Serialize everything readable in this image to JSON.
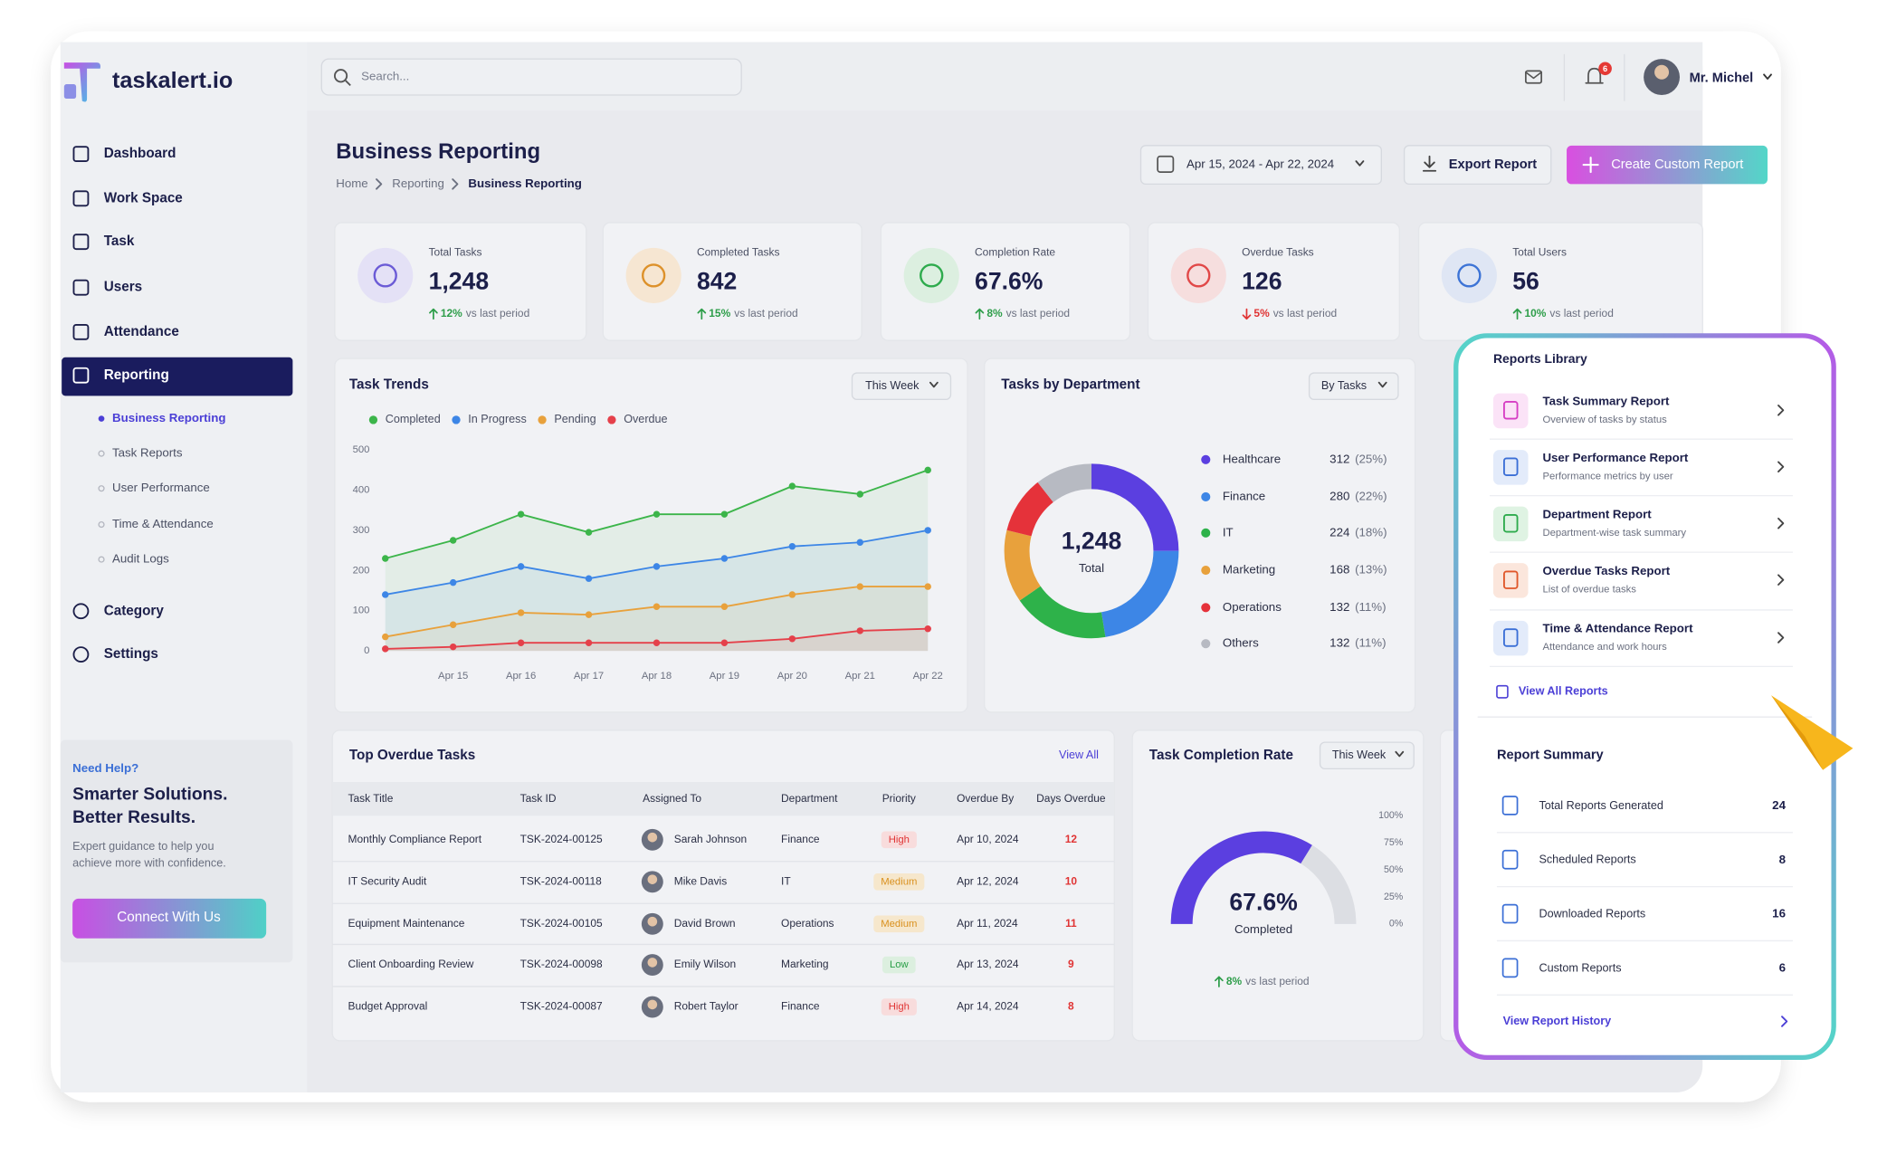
{
  "brand": "taskalert.io",
  "search_placeholder": "Search...",
  "notifications": 6,
  "user": "Mr. Michel",
  "nav": [
    "Dashboard",
    "Work Space",
    "Task",
    "Users",
    "Attendance",
    "Reporting"
  ],
  "subnav": [
    "Business Reporting",
    "Task Reports",
    "User Performance",
    "Time & Attendance",
    "Audit Logs"
  ],
  "nav_bottom": [
    "Category",
    "Settings"
  ],
  "help": {
    "kicker": "Need Help?",
    "title_lines": [
      "Smarter Solutions.",
      "Better Results."
    ],
    "text_lines": [
      "Expert guidance to help you",
      "achieve more with confidence."
    ],
    "button": "Connect With Us"
  },
  "header": {
    "title": "Business Reporting",
    "breadcrumb": [
      "Home",
      "Reporting",
      "Business Reporting"
    ],
    "date_range": "Apr 15, 2024 - Apr 22, 2024",
    "export": "Export Report",
    "create": "Create Custom Report"
  },
  "kpis": [
    {
      "label": "Total Tasks",
      "value": "1,248",
      "delta": "12%",
      "note": "vs last period",
      "trend_color": "#2e9e4a",
      "icon_bg": "#e4e1f6",
      "icon_color": "#6b5bd6"
    },
    {
      "label": "Completed Tasks",
      "value": "842",
      "delta": "15%",
      "note": "vs last period",
      "trend_color": "#2e9e4a",
      "icon_bg": "#f6e6d2",
      "icon_color": "#dd912a"
    },
    {
      "label": "Completion Rate",
      "value": "67.6%",
      "delta": "8%",
      "note": "vs last period",
      "trend_color": "#2e9e4a",
      "icon_bg": "#dcefe0",
      "icon_color": "#2eab4d"
    },
    {
      "label": "Overdue Tasks",
      "value": "126",
      "delta": "5%",
      "note": "vs last period",
      "trend_color": "#e03434",
      "icon_bg": "#f6dede",
      "icon_color": "#e14848"
    },
    {
      "label": "Total Users",
      "value": "56",
      "delta": "10%",
      "note": "vs last period",
      "trend_color": "#2e9e4a",
      "icon_bg": "#dfe6f4",
      "icon_color": "#3d74d6"
    }
  ],
  "task_trends": {
    "type": "line",
    "title": "Task Trends",
    "filter": "This Week",
    "categories": [
      null,
      "Apr 15",
      "Apr 16",
      "Apr 17",
      "Apr 18",
      "Apr 19",
      "Apr 20",
      "Apr 21",
      "Apr 22"
    ],
    "series": [
      {
        "name": "Completed",
        "color": "#3cb54a",
        "values": [
          230,
          275,
          340,
          295,
          340,
          340,
          410,
          390,
          450
        ]
      },
      {
        "name": "In Progress",
        "color": "#3d86e6",
        "values": [
          140,
          170,
          210,
          180,
          210,
          230,
          260,
          270,
          300
        ]
      },
      {
        "name": "Pending",
        "color": "#e8a13c",
        "values": [
          35,
          65,
          95,
          90,
          110,
          110,
          140,
          160,
          160
        ]
      },
      {
        "name": "Overdue",
        "color": "#e5404a",
        "values": [
          5,
          10,
          20,
          20,
          20,
          20,
          30,
          50,
          55
        ]
      }
    ],
    "ylim": [
      0,
      500
    ],
    "yticks": [
      0,
      100,
      200,
      300,
      400,
      500
    ],
    "grid": false
  },
  "departments": {
    "type": "pie",
    "title": "Tasks by Department",
    "filter": "By Tasks",
    "total_label": "1,248",
    "total_caption": "Total",
    "categories": [
      "Healthcare",
      "Finance",
      "IT",
      "Marketing",
      "Operations",
      "Others"
    ],
    "values": [
      312,
      280,
      224,
      168,
      132,
      132
    ],
    "pct_labels": [
      "(25%)",
      "(22%)",
      "(18%)",
      "(13%)",
      "(11%)",
      "(11%)"
    ],
    "colors": [
      "#5b3fe0",
      "#3d86e6",
      "#2eb24a",
      "#e8a13c",
      "#e5323a",
      "#b7bac2"
    ]
  },
  "overdue": {
    "title": "Top Overdue Tasks",
    "view_all": "View All",
    "columns": [
      "Task Title",
      "Task ID",
      "Assigned To",
      "Department",
      "Priority",
      "Overdue By",
      "Days Overdue"
    ],
    "rows": [
      {
        "cells": [
          "Monthly Compliance Report",
          "TSK-2024-00125",
          "Sarah Johnson",
          "Finance",
          "High",
          "Apr 10, 2024",
          12
        ],
        "priority_color": "#e03434",
        "priority_bg": "#f8dcdc"
      },
      {
        "cells": [
          "IT Security Audit",
          "TSK-2024-00118",
          "Mike Davis",
          "IT",
          "Medium",
          "Apr 12, 2024",
          10
        ],
        "priority_color": "#d9901d",
        "priority_bg": "#f6e7cc"
      },
      {
        "cells": [
          "Equipment Maintenance",
          "TSK-2024-00105",
          "David Brown",
          "Operations",
          "Medium",
          "Apr 11, 2024",
          11
        ],
        "priority_color": "#d9901d",
        "priority_bg": "#f6e7cc"
      },
      {
        "cells": [
          "Client Onboarding Review",
          "TSK-2024-00098",
          "Emily Wilson",
          "Marketing",
          "Low",
          "Apr 13, 2024",
          9
        ],
        "priority_color": "#2a9f48",
        "priority_bg": "#dcefdf"
      },
      {
        "cells": [
          "Budget Approval",
          "TSK-2024-00087",
          "Robert Taylor",
          "Finance",
          "High",
          "Apr 14, 2024",
          8
        ],
        "priority_color": "#e03434",
        "priority_bg": "#f8dcdc"
      }
    ]
  },
  "completion": {
    "type": "gauge",
    "title": "Task Completion Rate",
    "filter": "This Week",
    "value": 67.6,
    "value_label": "67.6%",
    "caption": "Completed",
    "color": "#5b3fe0",
    "ylim": [
      0,
      100
    ],
    "yticks": [
      {
        "value": 100,
        "label": "100%"
      },
      {
        "value": 75,
        "label": "75%"
      },
      {
        "value": 50,
        "label": "50%"
      },
      {
        "value": 25,
        "label": "25%"
      },
      {
        "value": 0,
        "label": "0%"
      }
    ],
    "delta": "8%",
    "note": "vs last period"
  },
  "reports_library": {
    "title": "Reports Library",
    "items": [
      {
        "title": "Task Summary Report",
        "subtitle": "Overview of tasks by status",
        "color": "#d63fc4",
        "bg": "#fbe3f7"
      },
      {
        "title": "User Performance Report",
        "subtitle": "Performance metrics by user",
        "color": "#3b6fd6",
        "bg": "#e3ebfa"
      },
      {
        "title": "Department Report",
        "subtitle": "Department-wise task summary",
        "color": "#2eab4d",
        "bg": "#dff3e3"
      },
      {
        "title": "Overdue Tasks Report",
        "subtitle": "List of overdue tasks",
        "color": "#e0572a",
        "bg": "#fbe6dc"
      },
      {
        "title": "Time & Attendance Report",
        "subtitle": "Attendance and work hours",
        "color": "#3b6fd6",
        "bg": "#e3ebfa"
      }
    ],
    "link": "View All Reports"
  },
  "report_summary": {
    "title": "Report Summary",
    "items": [
      {
        "label": "Total Reports Generated",
        "count": 24
      },
      {
        "label": "Scheduled Reports",
        "count": 8
      },
      {
        "label": "Downloaded Reports",
        "count": 16
      },
      {
        "label": "Custom Reports",
        "count": 6
      }
    ],
    "link": "View Report History"
  }
}
